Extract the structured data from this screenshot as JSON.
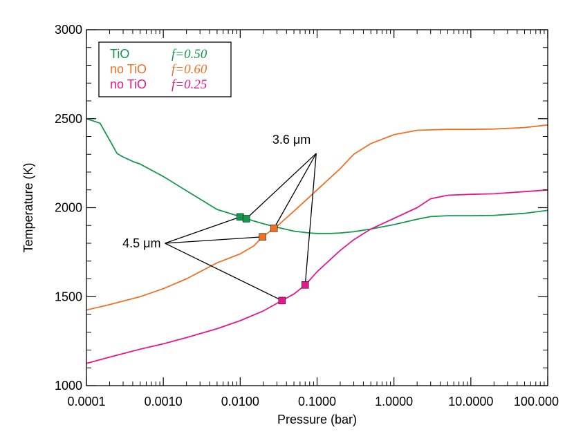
{
  "chart_data": {
    "type": "line",
    "xlabel": "Pressure (bar)",
    "ylabel": "Temperature (K)",
    "x_scale": "log",
    "xlim": [
      0.0001,
      100.0
    ],
    "ylim": [
      1000,
      3000
    ],
    "x_ticks": [
      {
        "value": 0.0001,
        "label": "0.0001"
      },
      {
        "value": 0.001,
        "label": "0.0010"
      },
      {
        "value": 0.01,
        "label": "0.0100"
      },
      {
        "value": 0.1,
        "label": "0.1000"
      },
      {
        "value": 1,
        "label": "1.0000"
      },
      {
        "value": 10,
        "label": "10.0000"
      },
      {
        "value": 100,
        "label": "100.000"
      }
    ],
    "y_ticks": [
      {
        "value": 1000,
        "label": "1000"
      },
      {
        "value": 1500,
        "label": "1500"
      },
      {
        "value": 2000,
        "label": "2000"
      },
      {
        "value": 2500,
        "label": "2500"
      },
      {
        "value": 3000,
        "label": "3000"
      }
    ],
    "legend_position": "top-left",
    "series": [
      {
        "name": "TiO",
        "f_label": "f=0.50",
        "color": "#13984d",
        "points": [
          [
            0.0001,
            2500
          ],
          [
            0.00015,
            2475
          ],
          [
            0.0002,
            2380
          ],
          [
            0.00025,
            2305
          ],
          [
            0.0003,
            2285
          ],
          [
            0.0004,
            2260
          ],
          [
            0.0005,
            2245
          ],
          [
            0.001,
            2175
          ],
          [
            0.002,
            2095
          ],
          [
            0.005,
            1990
          ],
          [
            0.01,
            1950
          ],
          [
            0.015,
            1925
          ],
          [
            0.02,
            1910
          ],
          [
            0.03,
            1890
          ],
          [
            0.05,
            1868
          ],
          [
            0.08,
            1858
          ],
          [
            0.1,
            1855
          ],
          [
            0.15,
            1855
          ],
          [
            0.2,
            1858
          ],
          [
            0.3,
            1865
          ],
          [
            0.5,
            1880
          ],
          [
            1,
            1905
          ],
          [
            2,
            1935
          ],
          [
            3,
            1950
          ],
          [
            5,
            1955
          ],
          [
            10,
            1955
          ],
          [
            20,
            1957
          ],
          [
            50,
            1968
          ],
          [
            100,
            1985
          ]
        ]
      },
      {
        "name": "no TiO",
        "f_label": "f=0.60",
        "color": "#f07022",
        "points": [
          [
            0.0001,
            1425
          ],
          [
            0.0002,
            1455
          ],
          [
            0.0005,
            1500
          ],
          [
            0.001,
            1545
          ],
          [
            0.002,
            1600
          ],
          [
            0.005,
            1690
          ],
          [
            0.01,
            1740
          ],
          [
            0.015,
            1785
          ],
          [
            0.02,
            1840
          ],
          [
            0.03,
            1895
          ],
          [
            0.05,
            1980
          ],
          [
            0.1,
            2100
          ],
          [
            0.2,
            2220
          ],
          [
            0.3,
            2300
          ],
          [
            0.5,
            2360
          ],
          [
            1,
            2410
          ],
          [
            2,
            2435
          ],
          [
            5,
            2440
          ],
          [
            10,
            2440
          ],
          [
            20,
            2442
          ],
          [
            50,
            2450
          ],
          [
            100,
            2465
          ]
        ]
      },
      {
        "name": "no TiO",
        "f_label": "f=0.25",
        "color": "#e3188d",
        "points": [
          [
            0.0001,
            1125
          ],
          [
            0.0002,
            1160
          ],
          [
            0.0005,
            1205
          ],
          [
            0.001,
            1235
          ],
          [
            0.002,
            1270
          ],
          [
            0.005,
            1320
          ],
          [
            0.01,
            1365
          ],
          [
            0.02,
            1420
          ],
          [
            0.035,
            1478
          ],
          [
            0.05,
            1515
          ],
          [
            0.07,
            1565
          ],
          [
            0.1,
            1640
          ],
          [
            0.2,
            1760
          ],
          [
            0.3,
            1820
          ],
          [
            0.5,
            1880
          ],
          [
            1,
            1940
          ],
          [
            2,
            2000
          ],
          [
            3,
            2050
          ],
          [
            5,
            2070
          ],
          [
            10,
            2075
          ],
          [
            20,
            2078
          ],
          [
            50,
            2090
          ],
          [
            100,
            2100
          ]
        ]
      }
    ],
    "markers": [
      {
        "series": 0,
        "x": 0.01,
        "y": 1948
      },
      {
        "series": 0,
        "x": 0.012,
        "y": 1938
      },
      {
        "series": 1,
        "x": 0.0195,
        "y": 1836
      },
      {
        "series": 1,
        "x": 0.0275,
        "y": 1884
      },
      {
        "series": 2,
        "x": 0.035,
        "y": 1478
      },
      {
        "series": 2,
        "x": 0.07,
        "y": 1566
      }
    ],
    "annotations": [
      {
        "label": "3.6 μm",
        "anchor": {
          "x": 0.0975,
          "y": 2305
        },
        "targets": [
          1,
          3,
          5
        ]
      },
      {
        "label": "4.5 μm",
        "anchor": {
          "x": 0.00105,
          "y": 1800
        },
        "targets": [
          0,
          2,
          4
        ]
      }
    ]
  }
}
